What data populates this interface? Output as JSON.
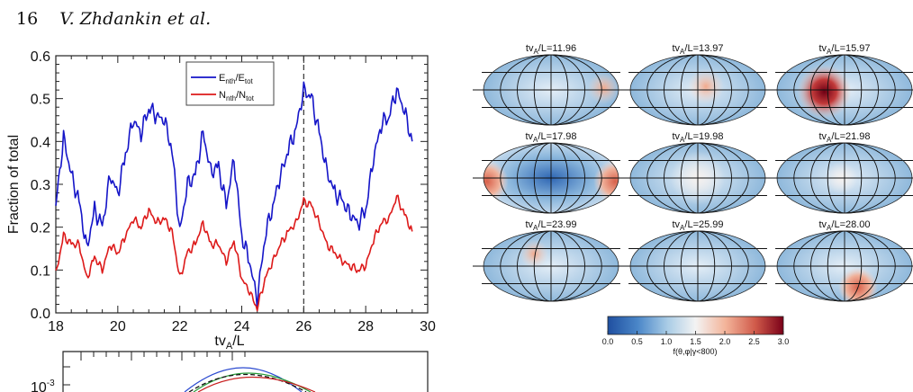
{
  "header": {
    "page_number": "16",
    "authors": "V. Zhdankin et al."
  },
  "chart_data": {
    "type": "line",
    "xlabel": "tv",
    "xlabel_sub": "A",
    "xlabel_tail": "/L",
    "ylabel": "Fraction of total",
    "xlim": [
      18,
      29.5
    ],
    "ylim": [
      0,
      0.6
    ],
    "xticks": [
      "18",
      "20",
      "22",
      "24",
      "26",
      "28",
      "30"
    ],
    "yticks": [
      "0.0",
      "0.1",
      "0.2",
      "0.3",
      "0.4",
      "0.5",
      "0.6"
    ],
    "vline_x": 26,
    "legend": [
      {
        "main": "E",
        "sub1": "nth",
        "slash": "/E",
        "sub2": "tot",
        "color": "#1515c8"
      },
      {
        "main": "N",
        "sub1": "nth",
        "slash": "/N",
        "sub2": "tot",
        "color": "#dd1a1a"
      }
    ],
    "x": [
      18.0,
      18.25,
      18.5,
      18.75,
      19.0,
      19.25,
      19.5,
      19.75,
      20.0,
      20.25,
      20.5,
      20.75,
      21.0,
      21.25,
      21.5,
      21.75,
      22.0,
      22.25,
      22.5,
      22.75,
      23.0,
      23.25,
      23.5,
      23.75,
      24.0,
      24.25,
      24.5,
      24.75,
      25.0,
      25.25,
      25.5,
      25.75,
      26.0,
      26.25,
      26.5,
      26.75,
      27.0,
      27.25,
      27.5,
      27.75,
      28.0,
      28.25,
      28.5,
      28.75,
      29.0,
      29.25,
      29.5
    ],
    "series": [
      {
        "name": "Enth/Etot",
        "color": "#1515c8",
        "values": [
          0.25,
          0.41,
          0.32,
          0.26,
          0.15,
          0.24,
          0.2,
          0.32,
          0.28,
          0.37,
          0.45,
          0.42,
          0.48,
          0.46,
          0.45,
          0.38,
          0.19,
          0.3,
          0.32,
          0.42,
          0.33,
          0.34,
          0.25,
          0.36,
          0.18,
          0.12,
          0.03,
          0.18,
          0.25,
          0.32,
          0.38,
          0.43,
          0.52,
          0.5,
          0.42,
          0.33,
          0.28,
          0.26,
          0.23,
          0.21,
          0.24,
          0.36,
          0.44,
          0.46,
          0.52,
          0.47,
          0.4
        ]
      },
      {
        "name": "Nnth/Ntot",
        "color": "#dd1a1a",
        "values": [
          0.09,
          0.18,
          0.16,
          0.16,
          0.08,
          0.13,
          0.1,
          0.16,
          0.14,
          0.18,
          0.22,
          0.2,
          0.24,
          0.21,
          0.22,
          0.19,
          0.08,
          0.14,
          0.16,
          0.21,
          0.16,
          0.16,
          0.12,
          0.17,
          0.08,
          0.05,
          0.01,
          0.08,
          0.12,
          0.16,
          0.19,
          0.21,
          0.26,
          0.25,
          0.21,
          0.16,
          0.14,
          0.12,
          0.11,
          0.1,
          0.11,
          0.17,
          0.21,
          0.22,
          0.27,
          0.23,
          0.19
        ]
      }
    ]
  },
  "maps": [
    {
      "label": "tv",
      "sub": "A",
      "tail": "/L=11.96"
    },
    {
      "label": "tv",
      "sub": "A",
      "tail": "/L=13.97"
    },
    {
      "label": "tv",
      "sub": "A",
      "tail": "/L=15.97"
    },
    {
      "label": "tv",
      "sub": "A",
      "tail": "/L=17.98"
    },
    {
      "label": "tv",
      "sub": "A",
      "tail": "/L=19.98"
    },
    {
      "label": "tv",
      "sub": "A",
      "tail": "/L=21.98"
    },
    {
      "label": "tv",
      "sub": "A",
      "tail": "/L=23.99"
    },
    {
      "label": "tv",
      "sub": "A",
      "tail": "/L=25.99"
    },
    {
      "label": "tv",
      "sub": "A",
      "tail": "/L=28.00"
    }
  ],
  "colorbar": {
    "ticks": [
      "0.0",
      "0.5",
      "1.0",
      "1.5",
      "2.0",
      "2.5",
      "3.0"
    ],
    "label": "f(θ,φ|γ<800)",
    "colors": [
      "#1f4fa0",
      "#4a86c8",
      "#a9cce6",
      "#f3f3f3",
      "#f3b49a",
      "#d05a4a",
      "#7a0018"
    ]
  },
  "lower_panel": {
    "ytick": "10",
    "ytick_exp": "-3"
  }
}
